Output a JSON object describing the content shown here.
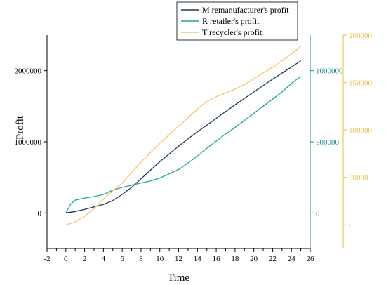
{
  "chart_data": {
    "type": "line",
    "xlabel": "Time",
    "ylabel": "Profit",
    "x_ticks": [
      "-2",
      "0",
      "2",
      "4",
      "6",
      "8",
      "10",
      "12",
      "14",
      "16",
      "18",
      "20",
      "22",
      "24",
      "26"
    ],
    "xlim": [
      -2,
      26
    ],
    "axes": {
      "left": {
        "ylim": [
          -500000,
          2500000
        ],
        "ticks": [
          {
            "v": 0,
            "label": "0"
          },
          {
            "v": 1000000,
            "label": "1000000"
          },
          {
            "v": 2000000,
            "label": "2000000"
          }
        ],
        "color": "#000000"
      },
      "right1": {
        "ylim": [
          -250000,
          1250000
        ],
        "ticks": [
          {
            "v": 0,
            "label": "0"
          },
          {
            "v": 500000,
            "label": "500000"
          },
          {
            "v": 1000000,
            "label": "1000000"
          }
        ],
        "color": "#1f8b8b"
      },
      "right2": {
        "ylim": [
          -25000,
          200000
        ],
        "ticks": [
          {
            "v": 0,
            "label": "0"
          },
          {
            "v": 50000,
            "label": "50000"
          },
          {
            "v": 100000,
            "label": "100000"
          },
          {
            "v": 150000,
            "label": "150000"
          },
          {
            "v": 200000,
            "label": "200000"
          }
        ],
        "color": "#f0b942"
      }
    },
    "legend_position": "top-right",
    "series": [
      {
        "name": "M remanufacturer's profit",
        "color": "#1c3b5a",
        "axis": "left",
        "points": [
          [
            0,
            0
          ],
          [
            1,
            20000
          ],
          [
            2,
            50000
          ],
          [
            3,
            85000
          ],
          [
            4,
            120000
          ],
          [
            5,
            175000
          ],
          [
            6,
            260000
          ],
          [
            7,
            360000
          ],
          [
            8,
            480000
          ],
          [
            9,
            600000
          ],
          [
            10,
            720000
          ],
          [
            11,
            830000
          ],
          [
            12,
            940000
          ],
          [
            13,
            1040000
          ],
          [
            14,
            1140000
          ],
          [
            15,
            1235000
          ],
          [
            16,
            1330000
          ],
          [
            17,
            1425000
          ],
          [
            18,
            1520000
          ],
          [
            19,
            1610000
          ],
          [
            20,
            1700000
          ],
          [
            21,
            1790000
          ],
          [
            22,
            1880000
          ],
          [
            23,
            1965000
          ],
          [
            24,
            2050000
          ],
          [
            25,
            2140000
          ]
        ]
      },
      {
        "name": "R retailer's profit",
        "color": "#1fa698",
        "axis": "right1",
        "points": [
          [
            0,
            0
          ],
          [
            0.5,
            60000
          ],
          [
            1,
            90000
          ],
          [
            2,
            105000
          ],
          [
            3,
            115000
          ],
          [
            4,
            130000
          ],
          [
            5,
            160000
          ],
          [
            6,
            180000
          ],
          [
            7,
            195000
          ],
          [
            8,
            210000
          ],
          [
            9,
            225000
          ],
          [
            10,
            245000
          ],
          [
            11,
            275000
          ],
          [
            12,
            305000
          ],
          [
            13,
            350000
          ],
          [
            14,
            400000
          ],
          [
            15,
            455000
          ],
          [
            16,
            505000
          ],
          [
            17,
            555000
          ],
          [
            18,
            600000
          ],
          [
            19,
            650000
          ],
          [
            20,
            700000
          ],
          [
            21,
            750000
          ],
          [
            22,
            800000
          ],
          [
            23,
            850000
          ],
          [
            24,
            910000
          ],
          [
            25,
            960000
          ]
        ]
      },
      {
        "name": "T recycler's profit",
        "color": "#f5c36a",
        "axis": "right2",
        "points": [
          [
            0,
            0
          ],
          [
            1,
            3000
          ],
          [
            2,
            9000
          ],
          [
            3,
            17000
          ],
          [
            4,
            27000
          ],
          [
            5,
            36000
          ],
          [
            6,
            44000
          ],
          [
            7,
            55000
          ],
          [
            8,
            66000
          ],
          [
            9,
            76000
          ],
          [
            10,
            86000
          ],
          [
            11,
            95000
          ],
          [
            12,
            104000
          ],
          [
            13,
            113000
          ],
          [
            14,
            122000
          ],
          [
            15,
            130000
          ],
          [
            16,
            135000
          ],
          [
            17,
            139000
          ],
          [
            18,
            143000
          ],
          [
            19,
            148000
          ],
          [
            20,
            154000
          ],
          [
            21,
            160000
          ],
          [
            22,
            166000
          ],
          [
            23,
            173000
          ],
          [
            24,
            180000
          ],
          [
            25,
            188000
          ]
        ]
      }
    ]
  }
}
